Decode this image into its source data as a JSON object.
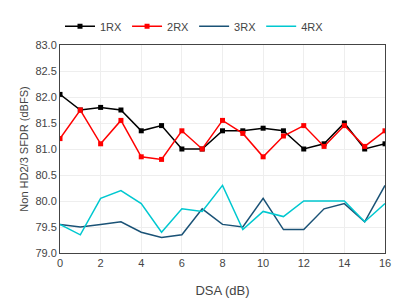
{
  "chart_data": {
    "type": "line",
    "xlabel": "DSA (dB)",
    "ylabel": "Non HD2/3 SFDR (dBFS)",
    "x": [
      0,
      1,
      2,
      3,
      4,
      5,
      6,
      7,
      8,
      9,
      10,
      11,
      12,
      13,
      14,
      15,
      16
    ],
    "series": [
      {
        "name": "1RX",
        "color": "#000000",
        "marker": "square",
        "values": [
          82.05,
          81.75,
          81.8,
          81.75,
          81.35,
          81.45,
          81.0,
          81.0,
          81.35,
          81.35,
          81.4,
          81.35,
          81.0,
          81.1,
          81.5,
          81.0,
          81.1
        ]
      },
      {
        "name": "2RX",
        "color": "#ff0000",
        "marker": "square",
        "values": [
          81.2,
          81.75,
          81.1,
          81.55,
          80.85,
          80.8,
          81.35,
          81.0,
          81.55,
          81.3,
          80.85,
          81.25,
          81.45,
          81.05,
          81.45,
          81.05,
          81.35
        ]
      },
      {
        "name": "3RX",
        "color": "#1a5276",
        "marker": "none",
        "values": [
          79.55,
          79.5,
          79.55,
          79.6,
          79.4,
          79.3,
          79.35,
          79.85,
          79.55,
          79.5,
          80.05,
          79.45,
          79.45,
          79.85,
          79.95,
          79.6,
          80.3
        ]
      },
      {
        "name": "4RX",
        "color": "#00c8d0",
        "marker": "none",
        "values": [
          79.55,
          79.35,
          80.05,
          80.2,
          79.95,
          79.4,
          79.85,
          79.8,
          80.3,
          79.45,
          79.8,
          79.7,
          80.0,
          80.0,
          80.0,
          79.6,
          79.95
        ]
      }
    ],
    "xlim": [
      0,
      16
    ],
    "xticks": [
      0,
      2,
      4,
      6,
      8,
      10,
      12,
      14,
      16
    ],
    "ylim": [
      79,
      83
    ],
    "yticks": [
      {
        "value": 79,
        "label": "79.0"
      },
      79.5,
      {
        "value": 80,
        "label": "80.0"
      },
      80.5,
      {
        "value": 81,
        "label": "81.0"
      },
      81.5,
      {
        "value": 82,
        "label": "82.0"
      },
      82.5,
      {
        "value": 83,
        "label": "83.0"
      }
    ],
    "grid": true,
    "legend": "upper left"
  }
}
